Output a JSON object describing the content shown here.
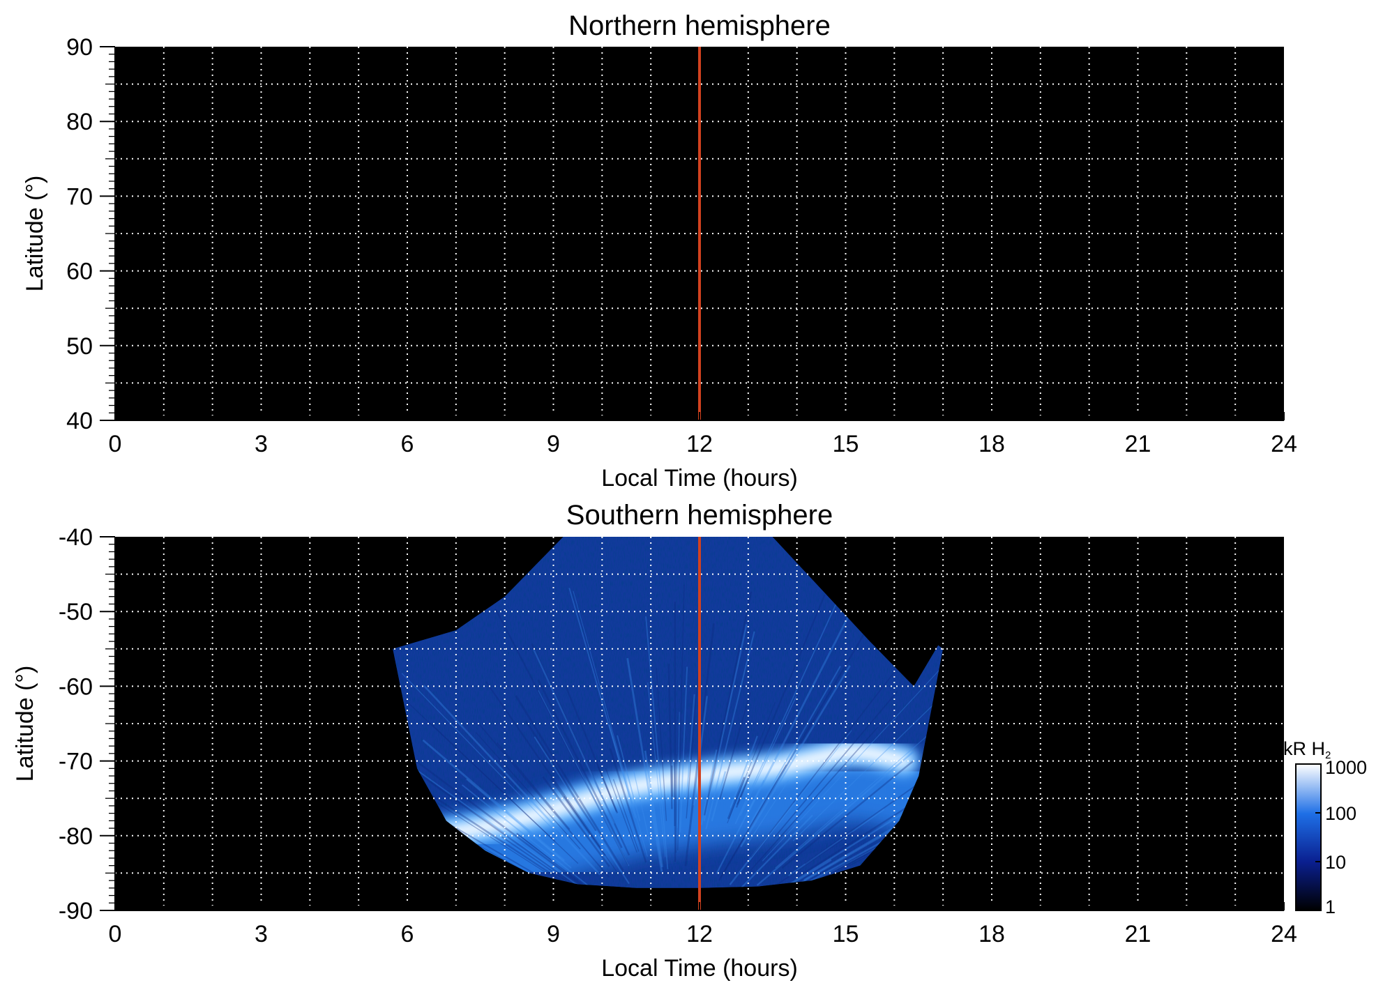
{
  "chart_data": [
    {
      "type": "heatmap",
      "title": "Northern hemisphere",
      "xlabel": "Local Time (hours)",
      "ylabel": "Latitude (°)",
      "xlim": [
        0,
        24
      ],
      "ylim": [
        40,
        90
      ],
      "x_ticks": [
        0,
        3,
        6,
        9,
        12,
        15,
        18,
        21,
        24
      ],
      "y_ticks": [
        40,
        50,
        60,
        70,
        80,
        90
      ],
      "grid": true,
      "grid_style": "white dotted, every 1 hour and 5 degrees",
      "marker_line": {
        "x": 12,
        "color": "#d2421f"
      },
      "emission": "none (all black)"
    },
    {
      "type": "heatmap",
      "title": "Southern hemisphere",
      "xlabel": "Local Time (hours)",
      "ylabel": "Latitude (°)",
      "xlim": [
        0,
        24
      ],
      "ylim": [
        -90,
        -40
      ],
      "x_ticks": [
        0,
        3,
        6,
        9,
        12,
        15,
        18,
        21,
        24
      ],
      "y_ticks": [
        -40,
        -50,
        -60,
        -70,
        -80,
        -90
      ],
      "grid": true,
      "grid_style": "white dotted, every 1 hour and 5 degrees",
      "marker_line": {
        "x": 12,
        "color": "#d2421f"
      },
      "coverage": {
        "lt_range": [
          5.7,
          17.0
        ],
        "top_edge": [
          [
            5.7,
            -55
          ],
          [
            7.0,
            -52.5
          ],
          [
            8.0,
            -48
          ],
          [
            9.2,
            -40
          ],
          [
            13.5,
            -40
          ],
          [
            14.5,
            -47
          ],
          [
            15.5,
            -54
          ],
          [
            16.4,
            -60
          ],
          [
            16.9,
            -54.5
          ],
          [
            17.0,
            -55
          ]
        ],
        "bottom_edge": [
          [
            5.7,
            -55
          ],
          [
            6.2,
            -71
          ],
          [
            6.8,
            -78
          ],
          [
            7.6,
            -82
          ],
          [
            8.5,
            -85
          ],
          [
            9.5,
            -86.5
          ],
          [
            10.7,
            -87
          ],
          [
            12.0,
            -87
          ],
          [
            13.2,
            -86.8
          ],
          [
            14.3,
            -86
          ],
          [
            15.3,
            -84
          ],
          [
            16.1,
            -78
          ],
          [
            16.5,
            -72
          ],
          [
            17.0,
            -55
          ]
        ]
      },
      "auroral_oval": [
        [
          6.5,
          -80
        ],
        [
          7.5,
          -79
        ],
        [
          8.5,
          -77.5
        ],
        [
          9.5,
          -75.5
        ],
        [
          10.5,
          -73.5
        ],
        [
          11.5,
          -72.5
        ],
        [
          12.5,
          -71.5
        ],
        [
          13.5,
          -71
        ],
        [
          14.5,
          -69.5
        ],
        [
          15.2,
          -68.5
        ],
        [
          16.2,
          -70
        ]
      ],
      "colorbar": {
        "label": "kR H",
        "label_sub": "2",
        "scale": "log",
        "range": [
          1,
          1000
        ],
        "ticks": [
          "1",
          "10",
          "100",
          "1000"
        ],
        "colors": [
          "#000000",
          "#0a1f8f",
          "#1e6fe6",
          "#ffffff"
        ]
      }
    }
  ]
}
